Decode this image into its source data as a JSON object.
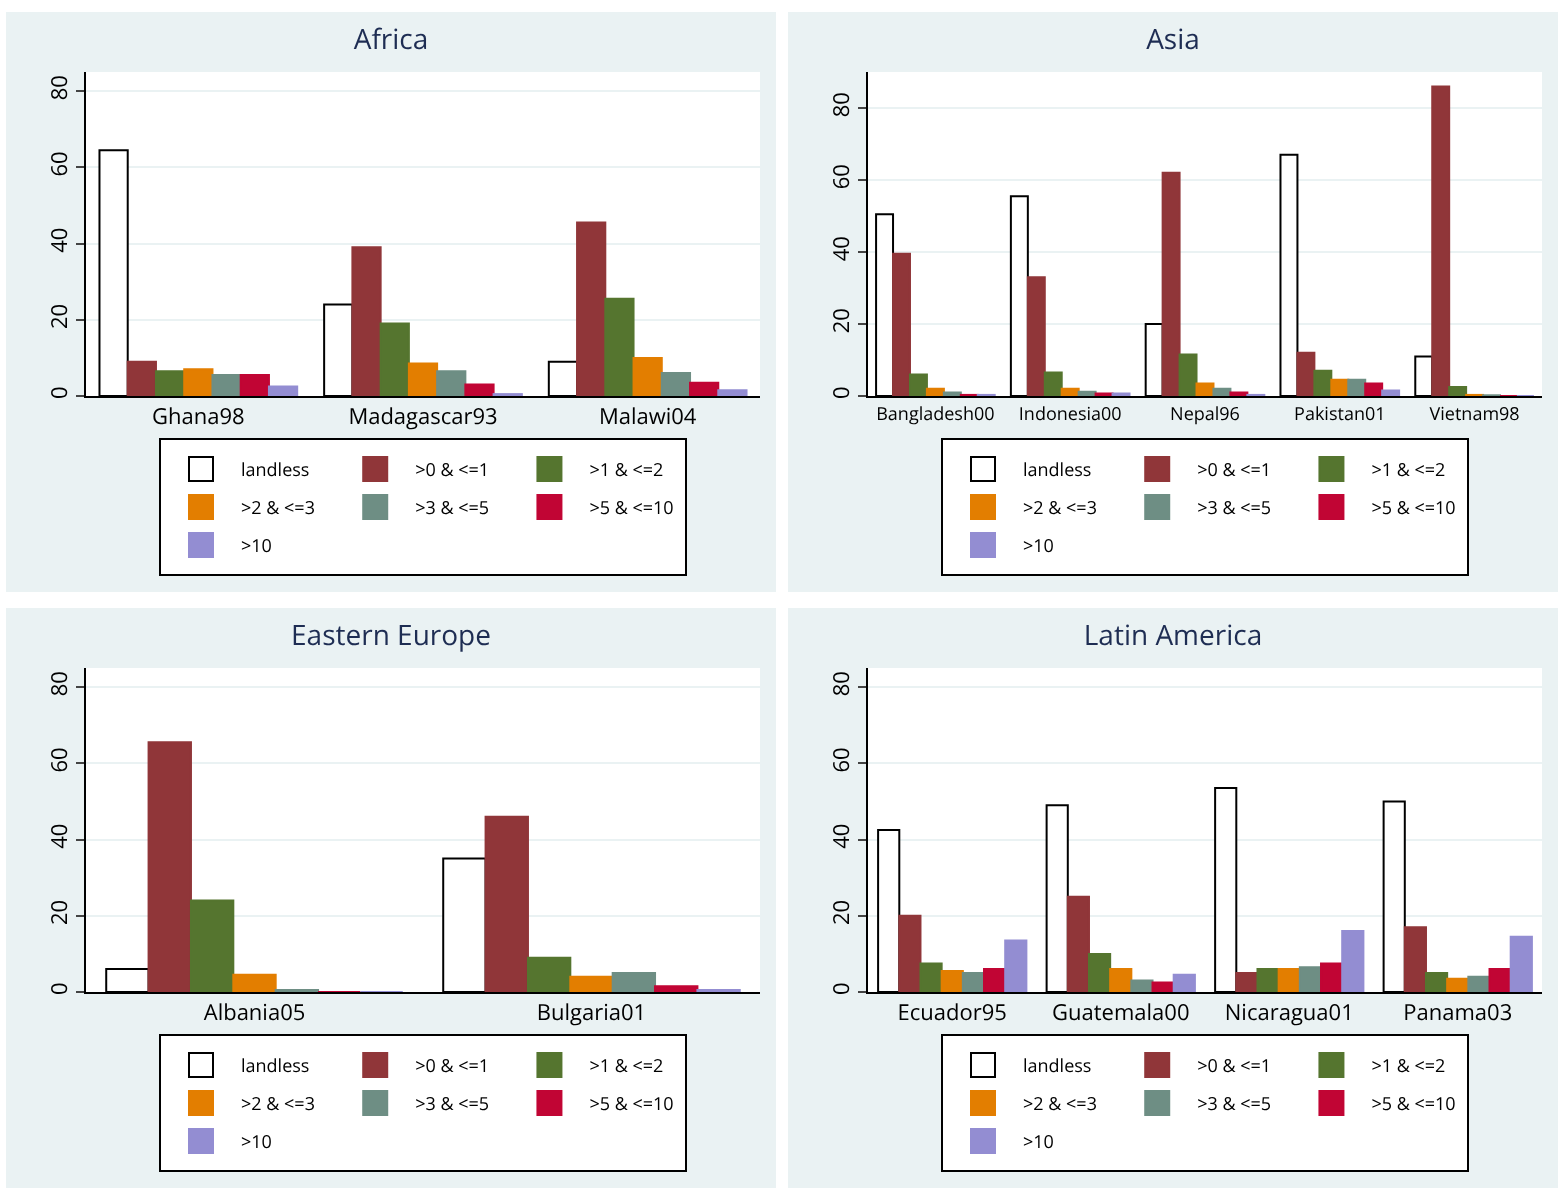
{
  "chart_data": [
    {
      "type": "bar",
      "title": "Africa",
      "categories": [
        "Ghana98",
        "Madagascar93",
        "Malawi04"
      ],
      "ylim": [
        0,
        85
      ],
      "yticks": [
        0,
        20,
        40,
        60,
        80
      ],
      "grid": "y",
      "legend": "bottom",
      "series": [
        {
          "name": "landless",
          "color": "#ffffff",
          "values": [
            64.5,
            24,
            9
          ]
        },
        {
          "name": ">0 & <=1",
          "color": "#903639",
          "values": [
            9,
            39,
            45.5
          ]
        },
        {
          "name": ">1 & <=2",
          "color": "#55752f",
          "values": [
            6.5,
            19,
            25.5
          ]
        },
        {
          "name": ">2 & <=3",
          "color": "#e37e00",
          "values": [
            7,
            8.5,
            10
          ]
        },
        {
          "name": ">3 & <=5",
          "color": "#6e8e84",
          "values": [
            5.5,
            6.5,
            6
          ]
        },
        {
          "name": ">5 & <=10",
          "color": "#c10534",
          "values": [
            5.5,
            3,
            3.5
          ]
        },
        {
          "name": ">10",
          "color": "#938dd2",
          "values": [
            2.5,
            0.5,
            1.5
          ]
        }
      ]
    },
    {
      "type": "bar",
      "title": "Asia",
      "categories": [
        "Bangladesh00",
        "Indonesia00",
        "Nepal96",
        "Pakistan01",
        "Vietnam98"
      ],
      "ylim": [
        0,
        90
      ],
      "yticks": [
        0,
        20,
        40,
        60,
        80
      ],
      "grid": "y",
      "legend": "bottom",
      "series": [
        {
          "name": "landless",
          "color": "#ffffff",
          "values": [
            50.5,
            55.5,
            20,
            67,
            11
          ]
        },
        {
          "name": ">0 & <=1",
          "color": "#903639",
          "values": [
            39.5,
            33,
            62,
            12,
            86
          ]
        },
        {
          "name": ">1 & <=2",
          "color": "#55752f",
          "values": [
            6,
            6.5,
            11.5,
            7,
            2.5
          ]
        },
        {
          "name": ">2 & <=3",
          "color": "#e37e00",
          "values": [
            2,
            2,
            3.5,
            4.5,
            0.3
          ]
        },
        {
          "name": ">3 & <=5",
          "color": "#6e8e84",
          "values": [
            1,
            1.2,
            2,
            4.5,
            0.2
          ]
        },
        {
          "name": ">5 & <=10",
          "color": "#c10534",
          "values": [
            0.3,
            0.7,
            1,
            3.5,
            0
          ]
        },
        {
          "name": ">10",
          "color": "#938dd2",
          "values": [
            0.3,
            0.7,
            0.3,
            1.5,
            0
          ]
        }
      ]
    },
    {
      "type": "bar",
      "title": "Eastern Europe",
      "categories": [
        "Albania05",
        "Bulgaria01"
      ],
      "ylim": [
        0,
        85
      ],
      "yticks": [
        0,
        20,
        40,
        60,
        80
      ],
      "grid": "y",
      "legend": "bottom",
      "series": [
        {
          "name": "landless",
          "color": "#ffffff",
          "values": [
            6,
            35
          ]
        },
        {
          "name": ">0 & <=1",
          "color": "#903639",
          "values": [
            65.5,
            46
          ]
        },
        {
          "name": ">1 & <=2",
          "color": "#55752f",
          "values": [
            24,
            9
          ]
        },
        {
          "name": ">2 & <=3",
          "color": "#e37e00",
          "values": [
            4.5,
            4
          ]
        },
        {
          "name": ">3 & <=5",
          "color": "#6e8e84",
          "values": [
            0.5,
            5
          ]
        },
        {
          "name": ">5 & <=10",
          "color": "#c10534",
          "values": [
            0,
            1.5
          ]
        },
        {
          "name": ">10",
          "color": "#938dd2",
          "values": [
            0,
            0.5
          ]
        }
      ]
    },
    {
      "type": "bar",
      "title": "Latin America",
      "categories": [
        "Ecuador95",
        "Guatemala00",
        "Nicaragua01",
        "Panama03"
      ],
      "ylim": [
        0,
        85
      ],
      "yticks": [
        0,
        20,
        40,
        60,
        80
      ],
      "grid": "y",
      "legend": "bottom",
      "series": [
        {
          "name": "landless",
          "color": "#ffffff",
          "values": [
            42.5,
            49,
            53.5,
            50
          ]
        },
        {
          "name": ">0 & <=1",
          "color": "#903639",
          "values": [
            20,
            25,
            5,
            17
          ]
        },
        {
          "name": ">1 & <=2",
          "color": "#55752f",
          "values": [
            7.5,
            10,
            6,
            5
          ]
        },
        {
          "name": ">2 & <=3",
          "color": "#e37e00",
          "values": [
            5.5,
            6,
            6,
            3.5
          ]
        },
        {
          "name": ">3 & <=5",
          "color": "#6e8e84",
          "values": [
            5,
            3,
            6.5,
            4
          ]
        },
        {
          "name": ">5 & <=10",
          "color": "#c10534",
          "values": [
            6,
            2.5,
            7.5,
            6
          ]
        },
        {
          "name": ">10",
          "color": "#938dd2",
          "values": [
            13.5,
            4.5,
            16,
            14.5
          ]
        }
      ]
    }
  ]
}
